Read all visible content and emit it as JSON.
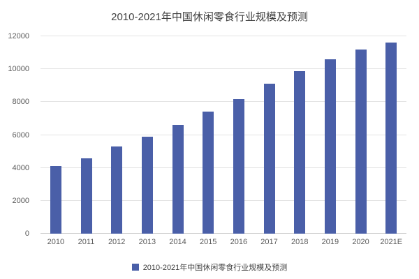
{
  "chart_data": {
    "type": "bar",
    "title": "2010-2021年中国休闲零食行业规模及预测",
    "categories": [
      "2010",
      "2011",
      "2012",
      "2013",
      "2014",
      "2015",
      "2016",
      "2017",
      "2018",
      "2019",
      "2020",
      "2021E"
    ],
    "values": [
      4100,
      4600,
      5300,
      5900,
      6600,
      7400,
      8200,
      9100,
      9900,
      10600,
      11200,
      11600
    ],
    "ylim": [
      0,
      12000
    ],
    "yticks": [
      0,
      2000,
      4000,
      6000,
      8000,
      10000,
      12000
    ],
    "xlabel": "",
    "ylabel": "",
    "grid": true,
    "legend_position": "bottom",
    "legend": [
      "2010-2021年中国休闲零食行业规模及预测"
    ],
    "bar_color": "#4a5fa8"
  }
}
